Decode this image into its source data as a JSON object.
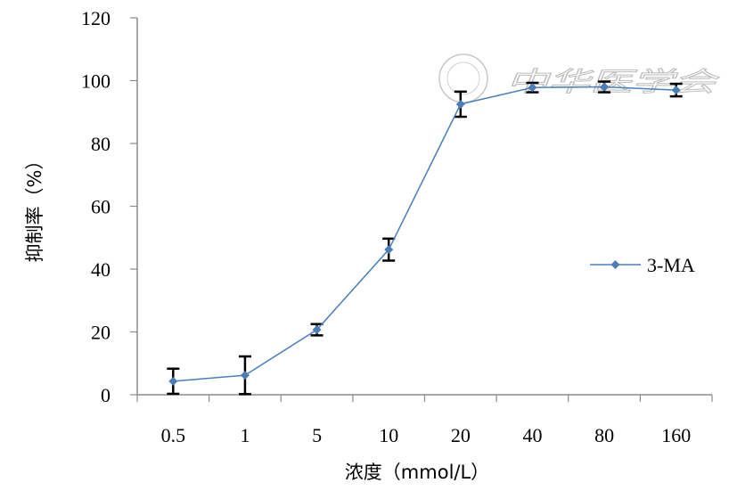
{
  "chart_data": {
    "type": "line",
    "title": "",
    "xlabel": "浓度（mmol/L）",
    "ylabel": "抑制率（%）",
    "categories": [
      "0.5",
      "1",
      "5",
      "10",
      "20",
      "40",
      "80",
      "160"
    ],
    "ylim": [
      0,
      120
    ],
    "yticks": [
      0,
      20,
      40,
      60,
      80,
      100,
      120
    ],
    "ytick_labels": [
      "0",
      "20",
      "40",
      "60",
      "80",
      "100",
      "120"
    ],
    "grid": false,
    "legend_position": "right",
    "series": [
      {
        "name": "3-MA",
        "color": "#4a7ebb",
        "marker": "diamond",
        "values": [
          4.3,
          6.2,
          20.7,
          46.2,
          92.5,
          97.8,
          98.0,
          97.0
        ],
        "error": [
          4.0,
          6.0,
          1.8,
          3.5,
          4.0,
          1.5,
          1.7,
          2.0
        ]
      }
    ],
    "error_bar_color": "#000000",
    "watermark": "中华医学会"
  }
}
